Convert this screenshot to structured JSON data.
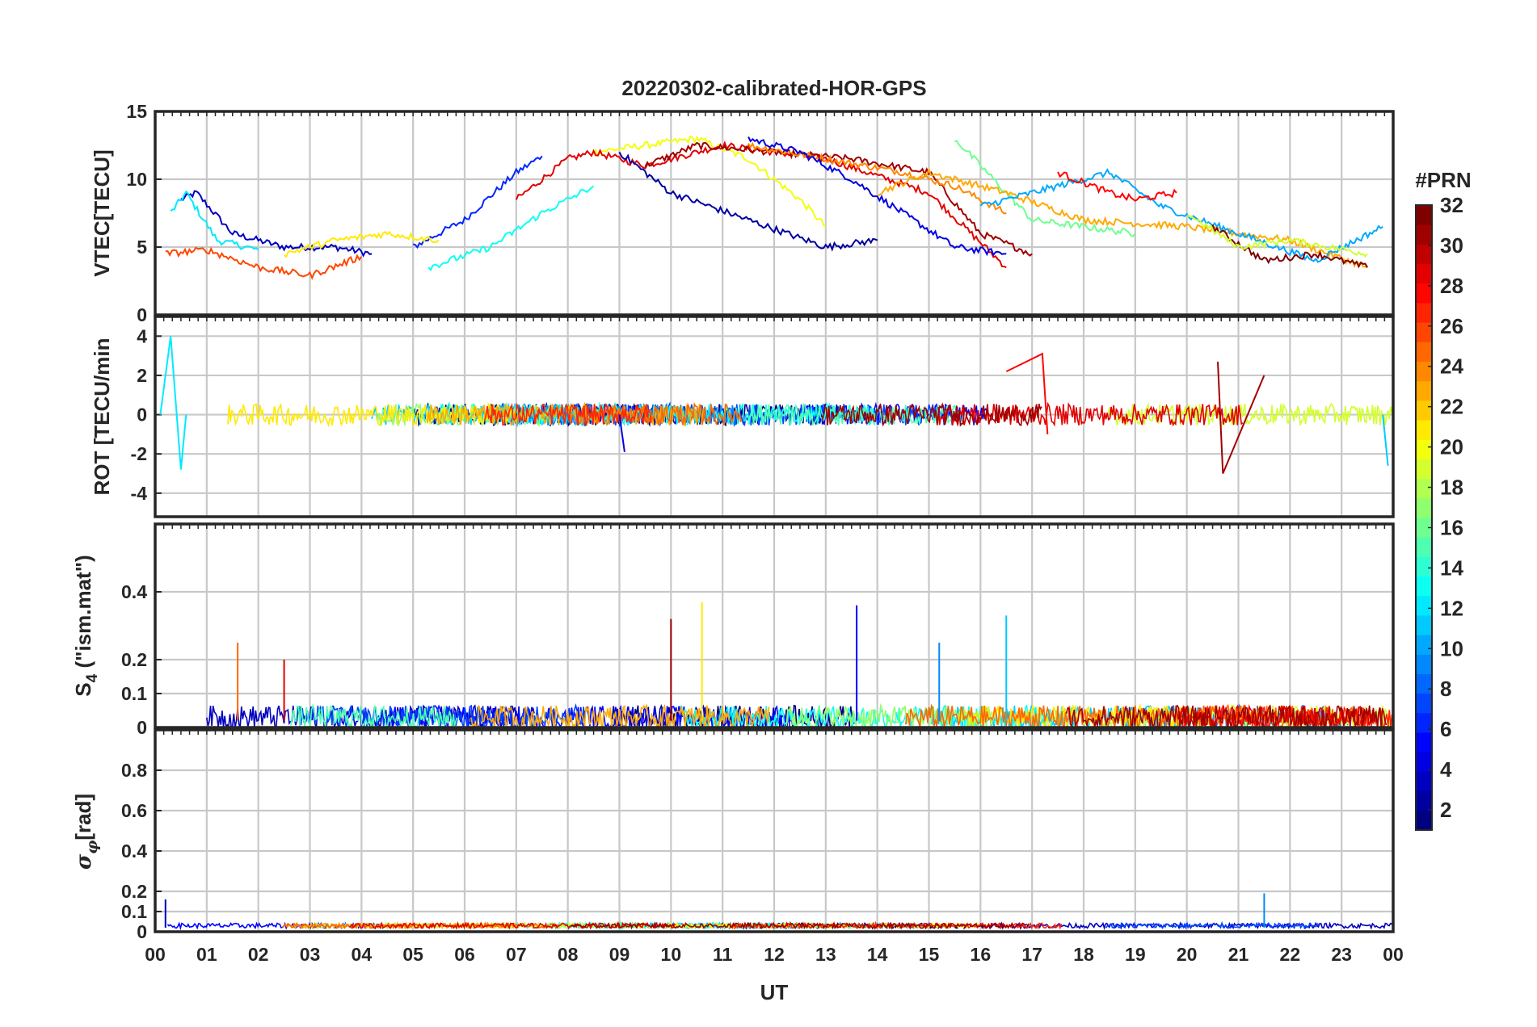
{
  "chart_data": {
    "type": "line",
    "title": "20220302-calibrated-HOR-GPS",
    "xlabel": "UT",
    "x_ticks": [
      "00",
      "01",
      "02",
      "03",
      "04",
      "05",
      "06",
      "07",
      "08",
      "09",
      "10",
      "11",
      "12",
      "13",
      "14",
      "15",
      "16",
      "17",
      "18",
      "19",
      "20",
      "21",
      "22",
      "23",
      "00"
    ],
    "x_range_hours": [
      0,
      24
    ],
    "grid": true,
    "colorbar": {
      "label": "#PRN",
      "ticks": [
        "2",
        "4",
        "6",
        "8",
        "10",
        "12",
        "14",
        "16",
        "18",
        "20",
        "22",
        "24",
        "26",
        "28",
        "30",
        "32"
      ],
      "range": [
        1,
        32
      ],
      "colormap": "jet",
      "placement": "right"
    },
    "panels": [
      {
        "id": "vtec",
        "ylabel": "VTEC[TECU]",
        "ylim": [
          0,
          15
        ],
        "yticks": [
          "0",
          "5",
          "10",
          "15"
        ],
        "ytick_values": [
          0,
          5,
          10,
          15
        ],
        "series": [
          {
            "prn": 3,
            "x": [
              0.5,
              0.8,
              1.5,
              2.5,
              3.5,
              4.2
            ],
            "y": [
              8.5,
              9.0,
              6.0,
              5.0,
              5.0,
              4.5
            ]
          },
          {
            "prn": 12,
            "x": [
              0.3,
              0.6,
              1.2,
              2.0
            ],
            "y": [
              7.5,
              9.0,
              5.5,
              4.8
            ]
          },
          {
            "prn": 6,
            "x": [
              5.0,
              6.0,
              7.0,
              7.5
            ],
            "y": [
              5.0,
              7.0,
              10.5,
              11.7
            ]
          },
          {
            "prn": 20,
            "x": [
              8.5,
              9.5,
              10.5,
              11.5,
              12.5,
              13.0
            ],
            "y": [
              12.0,
              12.5,
              13.0,
              11.5,
              8.5,
              6.5
            ]
          },
          {
            "prn": 29,
            "x": [
              7.0,
              8.0,
              8.5,
              9.5,
              11.0,
              13.0,
              15.0,
              16.5
            ],
            "y": [
              8.5,
              11.5,
              12.0,
              11.0,
              12.5,
              11.5,
              9.0,
              3.5
            ]
          },
          {
            "prn": 31,
            "x": [
              9.5,
              10.5,
              12.0,
              13.5,
              15.0,
              16.0,
              17.0
            ],
            "y": [
              11.0,
              12.5,
              12.0,
              11.5,
              10.5,
              6.0,
              4.5
            ]
          },
          {
            "prn": 24,
            "x": [
              11.5,
              13.0,
              14.5,
              15.5,
              16.5
            ],
            "y": [
              12.5,
              11.5,
              10.5,
              9.5,
              7.5
            ]
          },
          {
            "prn": 4,
            "x": [
              11.5,
              12.5,
              13.5,
              14.5,
              15.5,
              16.5
            ],
            "y": [
              13.0,
              12.0,
              10.0,
              7.5,
              5.0,
              4.5
            ]
          },
          {
            "prn": 2,
            "x": [
              9.0,
              10.0,
              11.5,
              13.0,
              14.0
            ],
            "y": [
              12.0,
              9.0,
              7.0,
              5.0,
              5.5
            ]
          },
          {
            "prn": 16,
            "x": [
              15.5,
              16.0,
              17.0,
              18.0,
              19.0
            ],
            "y": [
              13.0,
              11.0,
              7.0,
              6.5,
              6.0
            ]
          },
          {
            "prn": 23,
            "x": [
              14.0,
              15.0,
              16.5,
              18.0,
              20.0,
              22.0,
              23.5
            ],
            "y": [
              9.0,
              10.5,
              9.0,
              7.0,
              6.5,
              5.5,
              3.5
            ]
          },
          {
            "prn": 10,
            "x": [
              16.0,
              17.5,
              18.5,
              19.5,
              21.0,
              22.5,
              23.8
            ],
            "y": [
              8.0,
              9.5,
              10.5,
              8.0,
              6.0,
              4.0,
              6.5
            ]
          },
          {
            "prn": 28,
            "x": [
              17.5,
              18.5,
              19.0,
              19.8
            ],
            "y": [
              10.5,
              9.0,
              8.5,
              9.0
            ]
          },
          {
            "prn": 32,
            "x": [
              20.5,
              21.5,
              22.5,
              23.5
            ],
            "y": [
              6.5,
              4.0,
              4.5,
              3.5
            ]
          },
          {
            "prn": 19,
            "x": [
              20.0,
              21.0,
              22.0,
              23.5
            ],
            "y": [
              7.5,
              5.0,
              5.5,
              4.5
            ]
          },
          {
            "prn": 13,
            "x": [
              5.3,
              6.5,
              7.5,
              8.5
            ],
            "y": [
              3.5,
              5.0,
              7.5,
              9.5
            ]
          },
          {
            "prn": 26,
            "x": [
              0.2,
              1.0,
              2.0,
              3.0,
              4.0
            ],
            "y": [
              4.5,
              4.8,
              3.5,
              2.9,
              4.3
            ]
          },
          {
            "prn": 21,
            "x": [
              2.5,
              3.5,
              4.5,
              5.5
            ],
            "y": [
              4.5,
              5.5,
              6.0,
              5.5
            ]
          }
        ]
      },
      {
        "id": "rot",
        "ylabel": "ROT [TECU/min",
        "ylim": [
          -5.2,
          5
        ],
        "yticks": [
          "-4",
          "-2",
          "0",
          "2",
          "4"
        ],
        "ytick_values": [
          -4,
          -2,
          0,
          2,
          4
        ],
        "series": [
          {
            "prn": 12,
            "x": [
              0.1,
              0.3,
              0.5,
              0.6
            ],
            "y": [
              0.0,
              4.0,
              -2.8,
              0.0
            ]
          },
          {
            "prn": 4,
            "x": [
              9.0,
              9.1
            ],
            "y": [
              0.0,
              -1.9
            ]
          },
          {
            "prn": 28,
            "x": [
              16.5,
              17.2,
              17.3
            ],
            "y": [
              2.2,
              3.1,
              -1.0
            ]
          },
          {
            "prn": 31,
            "x": [
              20.6,
              20.7,
              21.5
            ],
            "y": [
              2.7,
              -3.0,
              2.0
            ]
          },
          {
            "prn": 11,
            "x": [
              23.8,
              23.9
            ],
            "y": [
              0.0,
              -2.6
            ]
          }
        ]
      },
      {
        "id": "s4",
        "ylabel": "S4 (\"ism.mat\")",
        "ylim": [
          0,
          0.6
        ],
        "yticks": [
          "0",
          "0.1",
          "0.2",
          "0.4"
        ],
        "ytick_values": [
          0,
          0.1,
          0.2,
          0.4
        ],
        "series": [
          {
            "prn": 25,
            "x": [
              1.6
            ],
            "y": [
              0.25
            ]
          },
          {
            "prn": 29,
            "x": [
              2.5
            ],
            "y": [
              0.2
            ]
          },
          {
            "prn": 31,
            "x": [
              10.0
            ],
            "y": [
              0.32
            ]
          },
          {
            "prn": 21,
            "x": [
              10.6
            ],
            "y": [
              0.37
            ]
          },
          {
            "prn": 5,
            "x": [
              13.6
            ],
            "y": [
              0.36
            ]
          },
          {
            "prn": 11,
            "x": [
              16.5
            ],
            "y": [
              0.33
            ]
          },
          {
            "prn": 9,
            "x": [
              15.2
            ],
            "y": [
              0.25
            ]
          }
        ]
      },
      {
        "id": "sigma",
        "ylabel": "σφ[rad]",
        "ylim": [
          0,
          1
        ],
        "yticks": [
          "0",
          "0.1",
          "0.2",
          "0.4",
          "0.6",
          "0.8"
        ],
        "ytick_values": [
          0,
          0.1,
          0.2,
          0.4,
          0.6,
          0.8
        ],
        "series": [
          {
            "prn": 9,
            "x": [
              21.5
            ],
            "y": [
              0.19
            ]
          },
          {
            "prn": 3,
            "x": [
              0.2
            ],
            "y": [
              0.16
            ]
          }
        ]
      }
    ]
  }
}
